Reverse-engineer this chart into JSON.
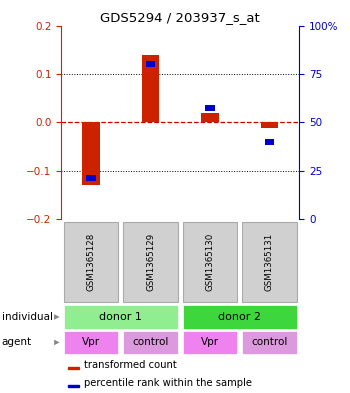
{
  "title": "GDS5294 / 203937_s_at",
  "samples": [
    "GSM1365128",
    "GSM1365129",
    "GSM1365130",
    "GSM1365131"
  ],
  "red_values": [
    -0.13,
    0.14,
    0.02,
    -0.012
  ],
  "blue_values": [
    -0.115,
    0.12,
    0.03,
    -0.04
  ],
  "ylim": [
    -0.2,
    0.2
  ],
  "yticks_left": [
    -0.2,
    -0.1,
    0.0,
    0.1,
    0.2
  ],
  "yticks_right": [
    0,
    25,
    50,
    75,
    100
  ],
  "individual_groups": [
    {
      "label": "donor 1",
      "span": [
        0,
        2
      ],
      "color": "#90EE90"
    },
    {
      "label": "donor 2",
      "span": [
        2,
        4
      ],
      "color": "#3DD63D"
    }
  ],
  "agents": [
    "Vpr",
    "control",
    "Vpr",
    "control"
  ],
  "agent_colors": [
    "#EE82EE",
    "#DD99DD",
    "#EE82EE",
    "#DD99DD"
  ],
  "bar_color": "#CC2200",
  "blue_color": "#0000CC",
  "red_dashed_color": "#CC0000",
  "bg_color": "#FFFFFF",
  "sample_box_color": "#D0D0D0",
  "sample_box_edge": "#AAAAAA",
  "left_axis_color": "#CC2200",
  "right_axis_color": "#0000CC",
  "legend_red_label": "transformed count",
  "legend_blue_label": "percentile rank within the sample",
  "individual_label": "individual",
  "agent_label": "agent"
}
